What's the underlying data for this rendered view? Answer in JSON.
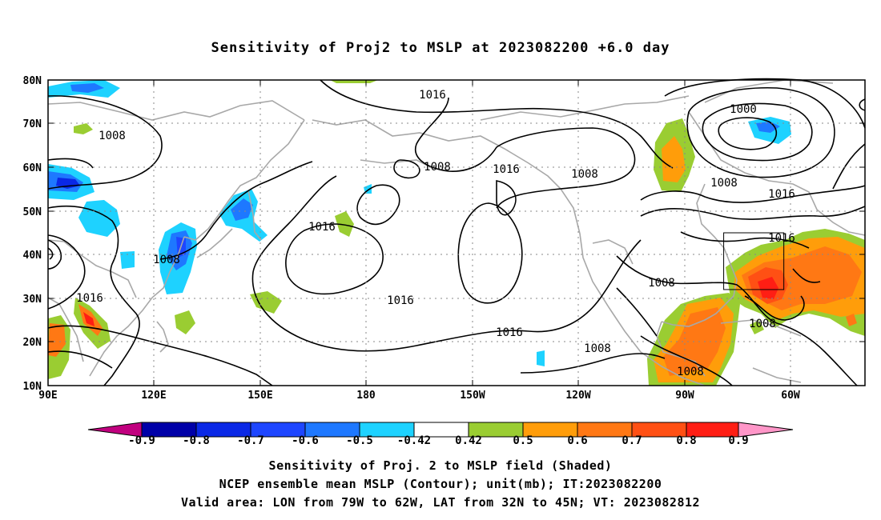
{
  "title": "Sensitivity of Proj2 to MSLP at 2023082200 +6.0 day",
  "map": {
    "lon_labels": [
      "90E",
      "120E",
      "150E",
      "180",
      "150W",
      "120W",
      "90W",
      "60W"
    ],
    "lat_labels": [
      "80N",
      "70N",
      "60N",
      "50N",
      "40N",
      "30N",
      "20N",
      "10N"
    ],
    "contour_labels": [
      "1008",
      "1016",
      "1008",
      "1016",
      "1000",
      "1008",
      "1016",
      "1008",
      "1016",
      "1008",
      "1008",
      "1016",
      "1016",
      "1008",
      "1008",
      "1008",
      "1016"
    ],
    "valid_box": {
      "lon": [
        -79,
        -62
      ],
      "lat": [
        32,
        45
      ]
    }
  },
  "colorbar": {
    "labels": [
      "-0.9",
      "-0.8",
      "-0.7",
      "-0.6",
      "-0.5",
      "-0.42",
      "0.42",
      "0.5",
      "0.6",
      "0.7",
      "0.8",
      "0.9"
    ],
    "colors": {
      "neg_extreme": "#c1007f",
      "n09": "#0000a8",
      "n08": "#0a28e6",
      "n07": "#1e46ff",
      "n06": "#1e78ff",
      "n05": "#1eaaff",
      "n042": "#1ed2ff",
      "neutral": "#ffffff",
      "p042": "#9acd32",
      "p05": "#ff9d0a",
      "p06": "#ff7814",
      "p07": "#ff5014",
      "p08": "#ff1e14",
      "pos_extreme": "#ff96c8"
    }
  },
  "caption": {
    "line1": "Sensitivity of Proj. 2 to MSLP field (Shaded)",
    "line2": "NCEP ensemble mean MSLP (Contour); unit(mb); IT:2023082200",
    "line3": "Valid area: LON from 79W to 62W, LAT from 32N to 45N; VT: 2023082812"
  }
}
